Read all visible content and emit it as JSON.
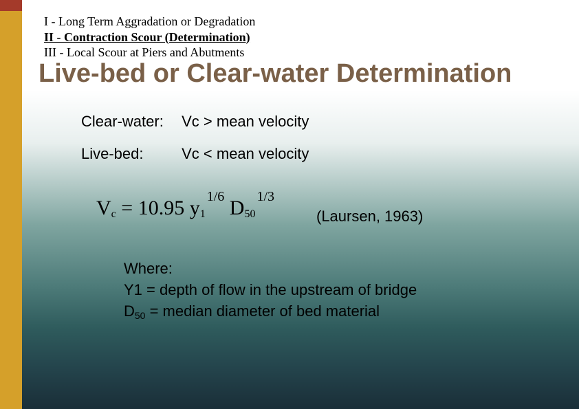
{
  "nav": {
    "item1": "I - Long Term Aggradation or Degradation",
    "item2": "II - Contraction Scour (Determination)",
    "item3": "III - Local Scour at Piers and Abutments"
  },
  "title": "Live-bed or Clear-water Determination",
  "conditions": {
    "clearwater_label": "Clear-water:",
    "clearwater_rule": "Vc > mean velocity",
    "livebed_label": "Live-bed:",
    "livebed_rule": "Vc < mean velocity"
  },
  "formula": {
    "lhs_var": "V",
    "lhs_sub": "c",
    "eq": "= 10.95",
    "y_var": "y",
    "y_sub": "1",
    "y_exp": "1/6",
    "d_var": "D",
    "d_sub": "50",
    "d_exp": "1/3"
  },
  "citation": "(Laursen, 1963)",
  "where": {
    "heading": "Where:",
    "y_line_pre": "Y1 = depth of flow in the upstream of bridge",
    "d_line_pre": "D",
    "d_sub": "50",
    "d_line_post": " = median diameter of bed material"
  },
  "colors": {
    "sidebar": "#d5a02a",
    "corner": "#a43a2a",
    "title": "#7a6048"
  }
}
